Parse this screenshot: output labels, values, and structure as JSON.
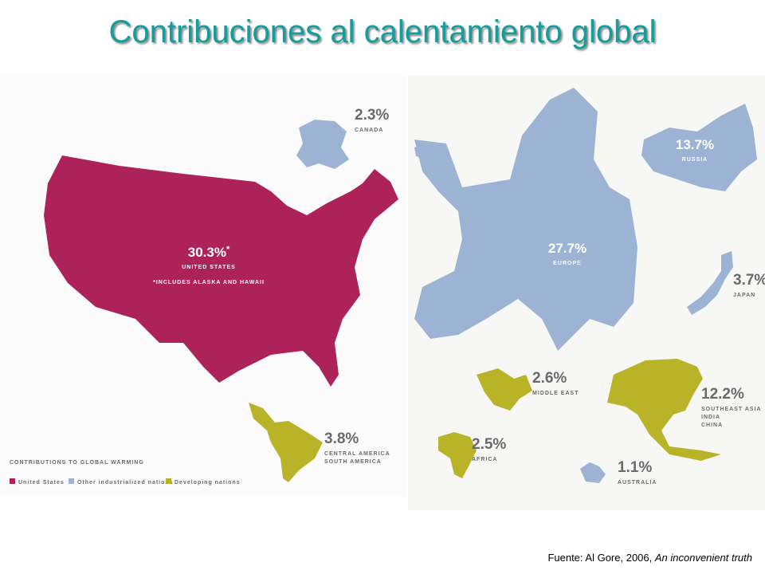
{
  "title": "Contribuciones al calentamiento global",
  "regions": [
    {
      "value": "30.3%",
      "marker": "*",
      "name": [
        "UNITED STATES"
      ],
      "note": "*INCLUDES ALASKA AND HAWAII"
    },
    {
      "value": "2.3%",
      "name": [
        "CANADA"
      ]
    },
    {
      "value": "3.8%",
      "name": [
        "CENTRAL AMERICA",
        "SOUTH AMERICA"
      ]
    },
    {
      "value": "13.7%",
      "name": [
        "RUSSIA"
      ]
    },
    {
      "value": "27.7%",
      "name": [
        "EUROPE"
      ]
    },
    {
      "value": "3.7%",
      "name": [
        "JAPAN"
      ]
    },
    {
      "value": "2.6%",
      "name": [
        "MIDDLE EAST"
      ]
    },
    {
      "value": "12.2%",
      "name": [
        "SOUTHEAST ASIA",
        "INDIA",
        "CHINA"
      ]
    },
    {
      "value": "2.5%",
      "name": [
        "AFRICA"
      ]
    },
    {
      "value": "1.1%",
      "name": [
        "AUSTRALIA"
      ]
    }
  ],
  "legend": {
    "title": "CONTRIBUTIONS TO GLOBAL WARMING",
    "items": [
      "United States",
      "Other industrialized nations",
      "Developing nations"
    ]
  },
  "source": {
    "text": "Fuente: Al Gore, 2006, ",
    "italic": "An inconvenient truth"
  }
}
